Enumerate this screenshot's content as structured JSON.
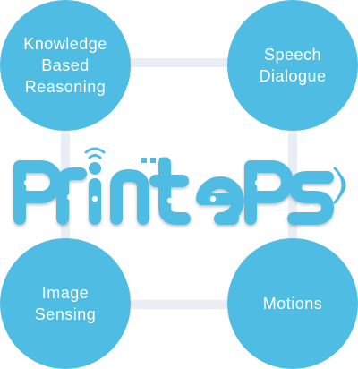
{
  "diagram": {
    "center_logo_text": "PrintePs",
    "accent_color": "#4fbde3",
    "connector_color": "#e8eef3",
    "nodes": [
      {
        "label": "Knowledge Based Reasoning"
      },
      {
        "label": "Speech Dialogue"
      },
      {
        "label": "Image Sensing"
      },
      {
        "label": "Motions"
      }
    ]
  }
}
